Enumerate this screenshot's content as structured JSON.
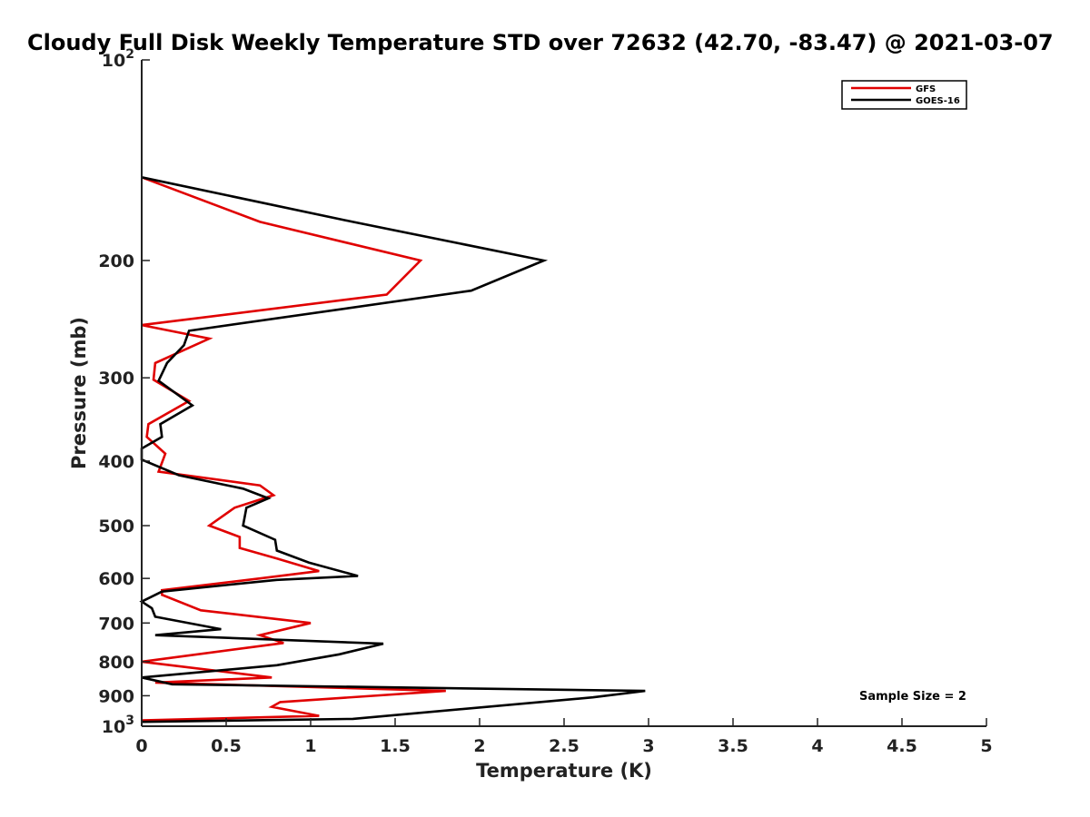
{
  "chart_data": {
    "type": "line",
    "title": "Cloudy Full Disk Weekly Temperature STD over 72632 (42.70, -83.47) @ 2021-03-07",
    "xlabel": "Temperature (K)",
    "ylabel": "Pressure (mb)",
    "xlim": [
      0,
      5
    ],
    "ylim": [
      1000,
      100
    ],
    "y_scale": "log",
    "y_reversed": true,
    "xticks": [
      0,
      0.5,
      1,
      1.5,
      2,
      2.5,
      3,
      3.5,
      4,
      4.5,
      5
    ],
    "xtick_labels": [
      "0",
      "0.5",
      "1",
      "1.5",
      "2",
      "2.5",
      "3",
      "3.5",
      "4",
      "4.5",
      "5"
    ],
    "yticks": [
      100,
      200,
      300,
      400,
      500,
      600,
      700,
      800,
      900,
      1000
    ],
    "ytick_labels": [
      {
        "base": "10",
        "exp": "2"
      },
      {
        "base": "200",
        "exp": ""
      },
      {
        "base": "300",
        "exp": ""
      },
      {
        "base": "400",
        "exp": ""
      },
      {
        "base": "500",
        "exp": ""
      },
      {
        "base": "600",
        "exp": ""
      },
      {
        "base": "700",
        "exp": ""
      },
      {
        "base": "800",
        "exp": ""
      },
      {
        "base": "900",
        "exp": ""
      },
      {
        "base": "10",
        "exp": "3"
      }
    ],
    "grid": false,
    "legend_position": "top-right",
    "annotation": "Sample Size = 2",
    "series": [
      {
        "name": "GFS",
        "color": "#e00000",
        "points": [
          [
            0.0,
            150
          ],
          [
            0.7,
            175
          ],
          [
            1.65,
            200
          ],
          [
            1.45,
            225
          ],
          [
            0.0,
            250
          ],
          [
            0.4,
            262
          ],
          [
            0.08,
            285
          ],
          [
            0.07,
            302
          ],
          [
            0.28,
            325
          ],
          [
            0.04,
            352
          ],
          [
            0.03,
            368
          ],
          [
            0.14,
            390
          ],
          [
            0.1,
            415
          ],
          [
            0.7,
            435
          ],
          [
            0.78,
            450
          ],
          [
            0.55,
            470
          ],
          [
            0.4,
            500
          ],
          [
            0.58,
            520
          ],
          [
            0.58,
            540
          ],
          [
            0.8,
            560
          ],
          [
            1.05,
            585
          ],
          [
            0.7,
            600
          ],
          [
            0.12,
            625
          ],
          [
            0.12,
            635
          ],
          [
            0.35,
            670
          ],
          [
            1.0,
            700
          ],
          [
            0.7,
            730
          ],
          [
            0.84,
            750
          ],
          [
            0.0,
            800
          ],
          [
            0.77,
            845
          ],
          [
            0.08,
            860
          ],
          [
            1.8,
            885
          ],
          [
            0.82,
            920
          ],
          [
            0.77,
            935
          ],
          [
            1.05,
            965
          ],
          [
            0.0,
            980
          ]
        ]
      },
      {
        "name": "GOES-16",
        "color": "#000000",
        "points": [
          [
            0.0,
            150
          ],
          [
            1.25,
            175
          ],
          [
            2.38,
            200
          ],
          [
            1.95,
            222
          ],
          [
            0.28,
            255
          ],
          [
            0.25,
            268
          ],
          [
            0.15,
            285
          ],
          [
            0.1,
            303
          ],
          [
            0.3,
            330
          ],
          [
            0.11,
            352
          ],
          [
            0.12,
            368
          ],
          [
            0.0,
            383
          ],
          [
            0.0,
            398
          ],
          [
            0.22,
            420
          ],
          [
            0.6,
            440
          ],
          [
            0.75,
            455
          ],
          [
            0.62,
            470
          ],
          [
            0.6,
            500
          ],
          [
            0.79,
            525
          ],
          [
            0.8,
            545
          ],
          [
            0.99,
            568
          ],
          [
            1.28,
            595
          ],
          [
            0.8,
            603
          ],
          [
            0.12,
            628
          ],
          [
            0.0,
            650
          ],
          [
            0.06,
            665
          ],
          [
            0.08,
            685
          ],
          [
            0.47,
            715
          ],
          [
            0.08,
            730
          ],
          [
            1.43,
            752
          ],
          [
            1.17,
            780
          ],
          [
            0.8,
            810
          ],
          [
            0.0,
            845
          ],
          [
            0.18,
            865
          ],
          [
            2.98,
            885
          ],
          [
            2.67,
            905
          ],
          [
            1.25,
            975
          ],
          [
            0.0,
            985
          ]
        ]
      }
    ]
  }
}
